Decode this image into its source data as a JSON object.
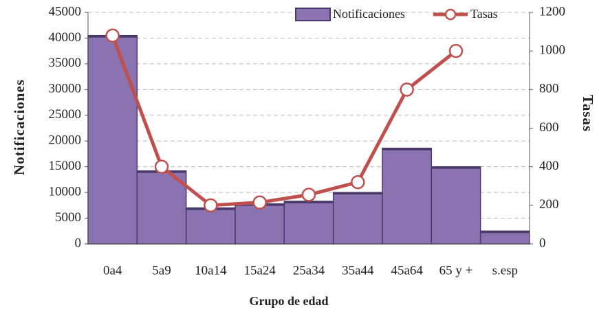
{
  "chart_data": {
    "type": "bar",
    "x_label": "Grupo de edad",
    "y_label": "Notificaciones",
    "y2_label": "Tasas",
    "categories": [
      "0a4",
      "5a9",
      "10a14",
      "15a24",
      "25a34",
      "35a44",
      "45a64",
      "65 y +",
      "s.esp"
    ],
    "series": [
      {
        "name": "Notificaciones",
        "type": "bar",
        "color": "#8b73b1",
        "values": [
          40500,
          14200,
          7000,
          7800,
          8300,
          10000,
          18600,
          15000,
          2500
        ]
      },
      {
        "name": "Tasas",
        "type": "line",
        "axis": "y2",
        "color": "#c0504d",
        "values": [
          1080,
          400,
          200,
          215,
          255,
          320,
          800,
          1000,
          null
        ]
      }
    ],
    "ylim": [
      0,
      45000
    ],
    "yticks": [
      0,
      5000,
      10000,
      15000,
      20000,
      25000,
      30000,
      35000,
      40000,
      45000
    ],
    "y2lim": [
      0,
      1200
    ],
    "y2ticks": [
      0,
      200,
      400,
      600,
      800,
      1000,
      1200
    ],
    "grid": true,
    "legend": "top"
  }
}
